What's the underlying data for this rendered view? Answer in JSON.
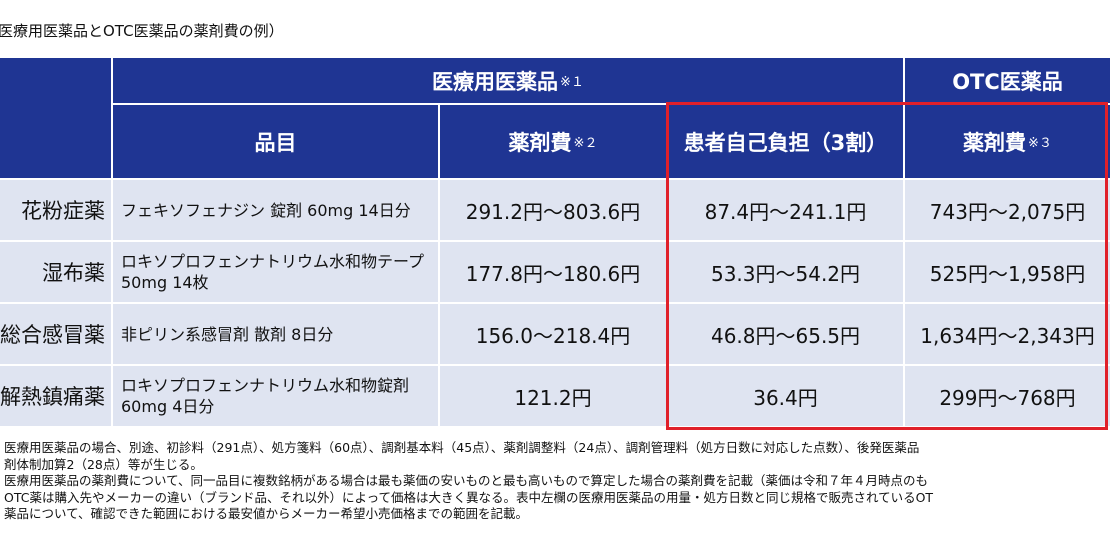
{
  "title": "医療用医薬品とOTC医薬品の薬剤費の例）",
  "table": {
    "group_headers": [
      {
        "text": "医療用医薬品",
        "note": "※１"
      },
      {
        "text": "OTC医薬品"
      }
    ],
    "headers": [
      {
        "text": "品目"
      },
      {
        "text": "薬剤費",
        "note": "※２"
      },
      {
        "text": "患者自己負担（3割）"
      },
      {
        "text": "薬剤費",
        "note": "※３"
      }
    ],
    "rows": [
      [
        "花粉症薬",
        "フェキソフェナジン 錠剤 60mg 14日分",
        "291.2円～803.6円",
        "87.4円～241.1円",
        "743円～2,075円"
      ],
      [
        "湿布薬",
        "ロキソプロフェンナトリウム水和物テープ 50mg 14枚",
        "177.8円～180.6円",
        "53.3円～54.2円",
        "525円～1,958円"
      ],
      [
        "総合感冒薬",
        "非ピリン系感冒剤 散剤 8日分",
        "156.0～218.4円",
        "46.8円～65.5円",
        "1,634円～2,343円"
      ],
      [
        "解熱鎮痛薬",
        "ロキソプロフェンナトリウム水和物錠剤 60mg 4日分",
        "121.2円",
        "36.4円",
        "299円～768円"
      ]
    ]
  },
  "notes": [
    "医療用医薬品の場合、別途、初診料（291点）、処方箋料（60点）、調剤基本料（45点）、薬剤調整料（24点）、調剤管理料（処方日数に対応した点数）、後発医薬品",
    "剤体制加算2（28点）等が生じる。",
    "医療用医薬品の薬剤費について、同一品目に複数銘柄がある場合は最も薬価の安いものと最も高いもので算定した場合の薬剤費を記載（薬価は令和７年４月時点のも",
    "OTC薬は購入先やメーカーの違い（ブランド品、それ以外）によって価格は大きく異なる。表中左欄の医療用医薬品の用量・処方日数と同じ規格で販売されているOT",
    "薬品について、確認できた範囲における最安値からメーカー希望小売価格までの範囲を記載。"
  ]
}
